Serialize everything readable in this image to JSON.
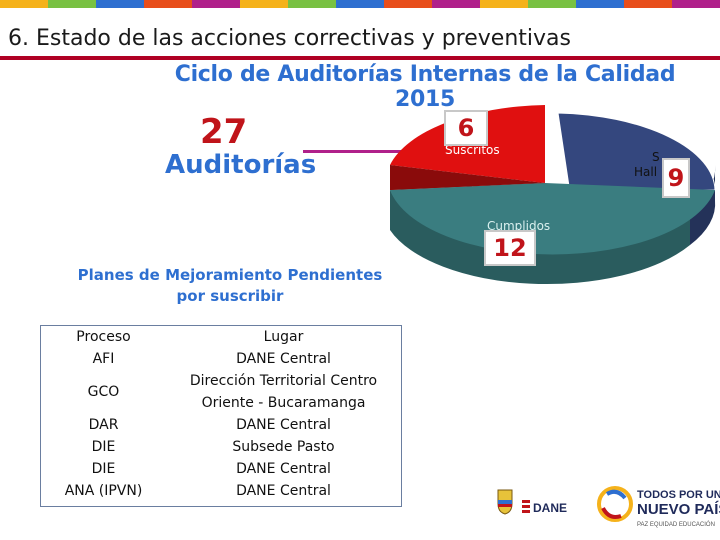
{
  "header": {
    "title": "6. Estado de las acciones correctivas y preventivas",
    "stripe_colors": [
      "#f5b21b",
      "#79c143",
      "#2e6fd0",
      "#e84e1b",
      "#b0208a",
      "#f5b21b",
      "#79c143",
      "#2e6fd0",
      "#e84e1b",
      "#b0208a",
      "#f5b21b",
      "#79c143",
      "#2e6fd0",
      "#e84e1b",
      "#b0208a"
    ],
    "accent_color": "#b00024"
  },
  "main": {
    "subtitle": "Ciclo de Auditorías Internas de la Calidad 2015",
    "audits_count": "27",
    "audits_label": "Auditorías",
    "pending_label_line1": "Planes de Mejoramiento Pendientes",
    "pending_label_line2": "por suscribir"
  },
  "chart_data": {
    "type": "pie",
    "title": "",
    "series": [
      {
        "name": "Suscritos",
        "value": 6,
        "color": "#e01010"
      },
      {
        "name": "Sin Hallazgos",
        "value": 9,
        "color": "#34477e"
      },
      {
        "name": "Cumplidos",
        "value": 12,
        "color": "#3a7d80"
      }
    ],
    "labels": {
      "suscritos": "Suscritos",
      "hall": "Hall",
      "s": "S",
      "cumplidos": "Cumplidos"
    },
    "callouts": {
      "suscritos": "6",
      "sin_hallazgos": "9",
      "cumplidos": "12"
    }
  },
  "table": {
    "headers": [
      "Proceso",
      "Lugar"
    ],
    "rows": [
      [
        "AFI",
        "DANE Central"
      ],
      [
        "GCO",
        "Dirección Territorial Centro Oriente - Bucaramanga"
      ],
      [
        "DAR",
        "DANE Central"
      ],
      [
        "DIE",
        "Subsede Pasto"
      ],
      [
        "DIE",
        "DANE Central"
      ],
      [
        "ANA (IPVN)",
        "DANE Central"
      ]
    ]
  },
  "footer": {
    "dane_logo_text": "DANE",
    "gov_line1": "TODOS POR UN",
    "gov_line2": "NUEVO PAÍS",
    "gov_tagline": "PAZ  EQUIDAD  EDUCACIÓN"
  }
}
